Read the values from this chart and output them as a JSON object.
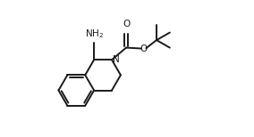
{
  "bg_color": "#ffffff",
  "line_color": "#1a1a1a",
  "line_width": 1.4,
  "fig_width": 2.84,
  "fig_height": 1.54,
  "dpi": 100,
  "xlim": [
    0,
    10.0
  ],
  "ylim": [
    -0.5,
    7.5
  ]
}
